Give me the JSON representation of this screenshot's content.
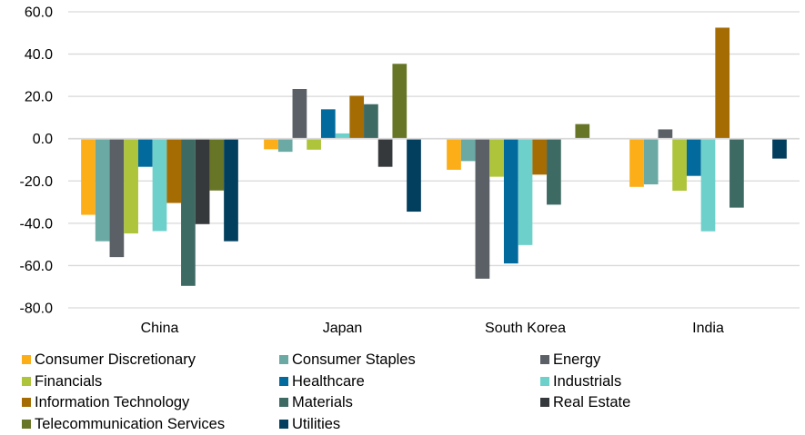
{
  "chart_data": {
    "type": "bar",
    "title": "",
    "xlabel": "",
    "ylabel": "",
    "ylim": [
      -80,
      60
    ],
    "yticks": [
      60,
      40,
      20,
      0,
      -20,
      -40,
      -60,
      -80
    ],
    "ytick_labels": [
      "60.0",
      "40.0",
      "20.0",
      "0.0",
      "-20.0",
      "-40.0",
      "-60.0",
      "-80.0"
    ],
    "grid": true,
    "legend_position": "bottom",
    "categories": [
      "China",
      "Japan",
      "South Korea",
      "India"
    ],
    "series": [
      {
        "name": "Consumer Discretionary",
        "color": "#FBAE17",
        "values": [
          -36.0,
          -5.0,
          -14.7,
          -22.8
        ]
      },
      {
        "name": "Consumer Staples",
        "color": "#6AA9A4",
        "values": [
          -48.5,
          -6.2,
          -10.6,
          -21.6
        ]
      },
      {
        "name": "Energy",
        "color": "#5A6065",
        "values": [
          -56.0,
          23.5,
          -66.2,
          4.4
        ]
      },
      {
        "name": "Financials",
        "color": "#AEC43A",
        "values": [
          -44.8,
          -5.2,
          -18.0,
          -24.6
        ]
      },
      {
        "name": "Healthcare",
        "color": "#026A9C",
        "values": [
          -13.3,
          13.9,
          -59.0,
          -17.6
        ]
      },
      {
        "name": "Industrials",
        "color": "#6DD0CB",
        "values": [
          -43.7,
          2.5,
          -50.3,
          -43.8
        ]
      },
      {
        "name": "Information Technology",
        "color": "#A46C03",
        "values": [
          -30.4,
          20.3,
          -17.0,
          52.5
        ]
      },
      {
        "name": "Materials",
        "color": "#3D6A63",
        "values": [
          -69.6,
          16.3,
          -31.2,
          -32.6
        ]
      },
      {
        "name": "Real Estate",
        "color": "#36393C",
        "values": [
          -40.4,
          -13.3,
          0,
          0
        ]
      },
      {
        "name": "Telecommunication Services",
        "color": "#677526",
        "values": [
          -24.5,
          35.4,
          6.9,
          0
        ]
      },
      {
        "name": "Utilities",
        "color": "#023F5E",
        "values": [
          -48.5,
          -34.5,
          0,
          -9.4
        ]
      }
    ]
  }
}
